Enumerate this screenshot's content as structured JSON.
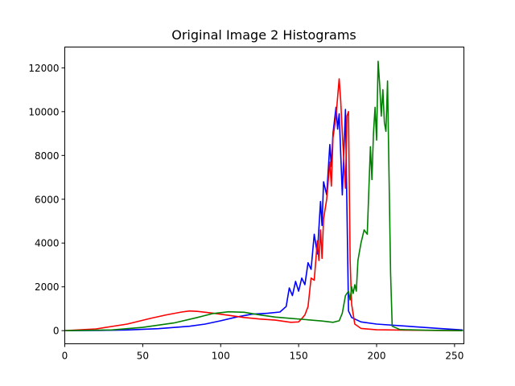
{
  "chart_data": {
    "type": "line",
    "title": "Original Image 2 Histograms",
    "xlabel": "",
    "ylabel": "",
    "xlim": [
      0,
      256
    ],
    "ylim": [
      -600,
      12950
    ],
    "xticks": [
      0,
      50,
      100,
      150,
      200,
      250
    ],
    "yticks": [
      0,
      2000,
      4000,
      6000,
      8000,
      10000,
      12000
    ],
    "grid": false,
    "legend": "none",
    "series": [
      {
        "color": "#0000ff",
        "points": [
          [
            0,
            0
          ],
          [
            20,
            10
          ],
          [
            40,
            30
          ],
          [
            60,
            90
          ],
          [
            80,
            200
          ],
          [
            90,
            300
          ],
          [
            100,
            450
          ],
          [
            110,
            620
          ],
          [
            120,
            750
          ],
          [
            130,
            790
          ],
          [
            138,
            850
          ],
          [
            142,
            1100
          ],
          [
            144,
            1950
          ],
          [
            146,
            1600
          ],
          [
            148,
            2250
          ],
          [
            150,
            1800
          ],
          [
            152,
            2400
          ],
          [
            154,
            2100
          ],
          [
            156,
            3100
          ],
          [
            158,
            2800
          ],
          [
            160,
            4400
          ],
          [
            162,
            3500
          ],
          [
            164,
            5900
          ],
          [
            165,
            4800
          ],
          [
            166,
            6800
          ],
          [
            168,
            6200
          ],
          [
            170,
            8500
          ],
          [
            171,
            7500
          ],
          [
            172,
            9000
          ],
          [
            174,
            10200
          ],
          [
            175,
            9200
          ],
          [
            176,
            9900
          ],
          [
            178,
            6200
          ],
          [
            180,
            10100
          ],
          [
            181,
            5500
          ],
          [
            182,
            900
          ],
          [
            184,
            600
          ],
          [
            190,
            400
          ],
          [
            200,
            300
          ],
          [
            220,
            200
          ],
          [
            240,
            100
          ],
          [
            255,
            30
          ]
        ]
      },
      {
        "color": "#ff0000",
        "points": [
          [
            0,
            0
          ],
          [
            20,
            80
          ],
          [
            40,
            300
          ],
          [
            55,
            560
          ],
          [
            65,
            720
          ],
          [
            75,
            850
          ],
          [
            80,
            900
          ],
          [
            85,
            880
          ],
          [
            95,
            800
          ],
          [
            105,
            700
          ],
          [
            115,
            600
          ],
          [
            125,
            530
          ],
          [
            135,
            480
          ],
          [
            145,
            380
          ],
          [
            150,
            400
          ],
          [
            152,
            550
          ],
          [
            154,
            720
          ],
          [
            156,
            1100
          ],
          [
            158,
            2400
          ],
          [
            160,
            2300
          ],
          [
            162,
            4100
          ],
          [
            163,
            3200
          ],
          [
            164,
            4600
          ],
          [
            165,
            3300
          ],
          [
            166,
            5100
          ],
          [
            168,
            6000
          ],
          [
            170,
            7700
          ],
          [
            171,
            6600
          ],
          [
            172,
            8800
          ],
          [
            174,
            9800
          ],
          [
            176,
            11500
          ],
          [
            177,
            10500
          ],
          [
            178,
            9000
          ],
          [
            180,
            6500
          ],
          [
            181,
            9800
          ],
          [
            182,
            10000
          ],
          [
            183,
            3200
          ],
          [
            184,
            1200
          ],
          [
            186,
            300
          ],
          [
            190,
            100
          ],
          [
            200,
            40
          ],
          [
            220,
            20
          ],
          [
            240,
            10
          ],
          [
            255,
            0
          ]
        ]
      },
      {
        "color": "#008000",
        "points": [
          [
            0,
            0
          ],
          [
            30,
            30
          ],
          [
            50,
            150
          ],
          [
            70,
            350
          ],
          [
            85,
            600
          ],
          [
            95,
            780
          ],
          [
            105,
            860
          ],
          [
            115,
            840
          ],
          [
            125,
            720
          ],
          [
            135,
            620
          ],
          [
            145,
            560
          ],
          [
            155,
            500
          ],
          [
            165,
            440
          ],
          [
            172,
            380
          ],
          [
            176,
            450
          ],
          [
            178,
            800
          ],
          [
            180,
            1600
          ],
          [
            182,
            1800
          ],
          [
            183,
            1400
          ],
          [
            184,
            2000
          ],
          [
            185,
            1700
          ],
          [
            186,
            2100
          ],
          [
            187,
            1800
          ],
          [
            188,
            3200
          ],
          [
            190,
            4000
          ],
          [
            192,
            4600
          ],
          [
            194,
            4400
          ],
          [
            196,
            8400
          ],
          [
            197,
            6900
          ],
          [
            198,
            9000
          ],
          [
            199,
            10200
          ],
          [
            200,
            8700
          ],
          [
            201,
            12300
          ],
          [
            202,
            11200
          ],
          [
            203,
            9800
          ],
          [
            204,
            11000
          ],
          [
            205,
            9500
          ],
          [
            206,
            9100
          ],
          [
            207,
            11400
          ],
          [
            208,
            7000
          ],
          [
            209,
            2600
          ],
          [
            210,
            200
          ],
          [
            215,
            50
          ],
          [
            230,
            20
          ],
          [
            255,
            0
          ]
        ]
      }
    ]
  }
}
